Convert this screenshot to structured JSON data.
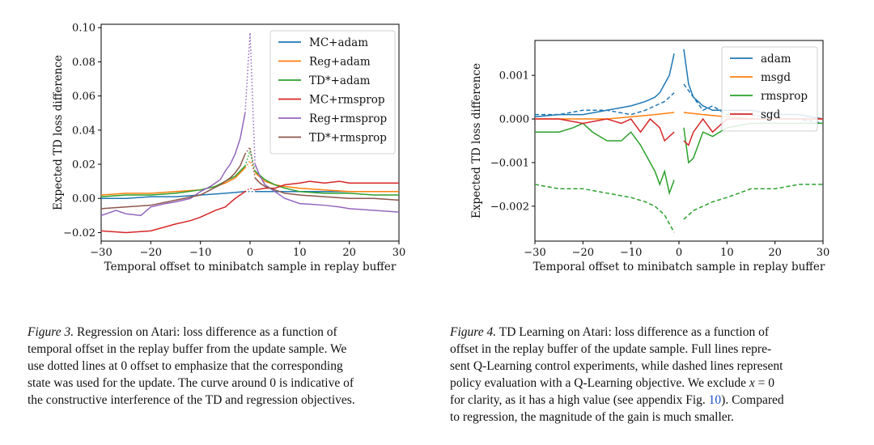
{
  "figure3": {
    "chart_data": {
      "type": "line",
      "ylabel": "Expected TD loss difference",
      "xlabel": "Temporal offset to minibatch sample in replay buffer",
      "xlim": [
        -30,
        30
      ],
      "ylim": [
        -0.025,
        0.102
      ],
      "xticks": [
        -30,
        -20,
        -10,
        0,
        10,
        20,
        30
      ],
      "xtick_labels": [
        "−30",
        "−20",
        "−10",
        "0",
        "10",
        "20",
        "30"
      ],
      "yticks": [
        -0.02,
        0.0,
        0.02,
        0.04,
        0.06,
        0.08,
        0.1
      ],
      "ytick_labels": [
        "−0.02",
        "0.00",
        "0.02",
        "0.04",
        "0.06",
        "0.08",
        "0.10"
      ],
      "legend_position": "top-right",
      "series": [
        {
          "name": "MC+adam",
          "color": "#1f77b4",
          "peak": 0.004,
          "x": [
            -30,
            -25,
            -20,
            -15,
            -10,
            -5,
            -1,
            1,
            5,
            10,
            15,
            20,
            25,
            30
          ],
          "y": [
            0.0,
            0.0,
            0.001,
            0.001,
            0.002,
            0.003,
            0.004,
            0.004,
            0.004,
            0.004,
            0.004,
            0.004,
            0.004,
            0.004
          ]
        },
        {
          "name": "Reg+adam",
          "color": "#ff7f0e",
          "peak": 0.022,
          "x": [
            -30,
            -25,
            -20,
            -15,
            -10,
            -7,
            -5,
            -3,
            -1,
            1,
            3,
            5,
            7,
            10,
            15,
            20,
            25,
            30
          ],
          "y": [
            0.002,
            0.003,
            0.003,
            0.004,
            0.005,
            0.007,
            0.009,
            0.012,
            0.018,
            0.015,
            0.01,
            0.008,
            0.007,
            0.006,
            0.005,
            0.004,
            0.004,
            0.004
          ]
        },
        {
          "name": "TD*+adam",
          "color": "#2ca02c",
          "peak": 0.028,
          "x": [
            -30,
            -25,
            -20,
            -15,
            -10,
            -7,
            -5,
            -3,
            -1,
            1,
            3,
            5,
            7,
            10,
            15,
            20,
            25,
            30
          ],
          "y": [
            0.001,
            0.002,
            0.002,
            0.003,
            0.005,
            0.007,
            0.01,
            0.013,
            0.019,
            0.016,
            0.011,
            0.008,
            0.006,
            0.004,
            0.003,
            0.003,
            0.002,
            0.002
          ]
        },
        {
          "name": "MC+rmsprop",
          "color": "#d62728",
          "peak": 0.006,
          "x": [
            -30,
            -25,
            -20,
            -15,
            -12,
            -10,
            -7,
            -5,
            -3,
            -1,
            1,
            3,
            5,
            7,
            10,
            12,
            15,
            18,
            20,
            25,
            30
          ],
          "y": [
            -0.019,
            -0.02,
            -0.019,
            -0.015,
            -0.013,
            -0.011,
            -0.007,
            -0.005,
            0.0,
            0.004,
            0.005,
            0.006,
            0.006,
            0.008,
            0.009,
            0.01,
            0.009,
            0.01,
            0.009,
            0.009,
            0.009
          ]
        },
        {
          "name": "Reg+rmsprop",
          "color": "#9467bd",
          "peak": 0.097,
          "x": [
            -30,
            -27,
            -25,
            -22,
            -20,
            -17,
            -15,
            -12,
            -10,
            -8,
            -6,
            -5,
            -4,
            -3,
            -2,
            -1,
            1,
            2,
            3,
            5,
            7,
            10,
            15,
            18,
            20,
            25,
            30
          ],
          "y": [
            -0.01,
            -0.007,
            -0.009,
            -0.01,
            -0.005,
            -0.003,
            -0.002,
            0.0,
            0.004,
            0.007,
            0.011,
            0.016,
            0.02,
            0.026,
            0.035,
            0.05,
            0.02,
            0.013,
            0.008,
            0.004,
            0.0,
            -0.003,
            -0.004,
            -0.005,
            -0.006,
            -0.007,
            -0.008
          ]
        },
        {
          "name": "TD*+rmsprop",
          "color": "#8c564b",
          "peak": 0.03,
          "x": [
            -30,
            -25,
            -20,
            -15,
            -10,
            -8,
            -6,
            -4,
            -3,
            -2,
            -1,
            1,
            2,
            3,
            5,
            7,
            10,
            15,
            20,
            25,
            30
          ],
          "y": [
            -0.006,
            -0.005,
            -0.004,
            -0.001,
            0.002,
            0.005,
            0.008,
            0.012,
            0.015,
            0.019,
            0.026,
            0.012,
            0.009,
            0.007,
            0.005,
            0.003,
            0.002,
            0.001,
            0.0,
            0.0,
            -0.001
          ]
        }
      ]
    }
  },
  "figure4": {
    "chart_data": {
      "type": "line",
      "ylabel": "Expected TD loss difference",
      "xlabel": "Temporal offset to minibatch sample in replay buffer",
      "xlim": [
        -30,
        30
      ],
      "ylim": [
        -0.0028,
        0.0018
      ],
      "xticks": [
        -30,
        -20,
        -10,
        0,
        10,
        20,
        30
      ],
      "xtick_labels": [
        "−30",
        "−20",
        "−10",
        "0",
        "10",
        "20",
        "30"
      ],
      "yticks": [
        -0.002,
        -0.001,
        0.0,
        0.001
      ],
      "ytick_labels": [
        "−0.002",
        "−0.001",
        "0.000",
        "0.001"
      ],
      "legend_position": "top-right",
      "legend": [
        {
          "name": "adam",
          "color": "#1f77b4"
        },
        {
          "name": "msgd",
          "color": "#ff7f0e"
        },
        {
          "name": "rmsprop",
          "color": "#2ca02c"
        },
        {
          "name": "sgd",
          "color": "#d62728"
        }
      ],
      "series": [
        {
          "name": "adam",
          "style": "solid",
          "color": "#1f77b4",
          "x": [
            -30,
            -25,
            -20,
            -15,
            -10,
            -7,
            -5,
            -4,
            -3,
            -2,
            -1,
            1,
            2,
            3,
            4,
            5,
            7,
            10,
            15,
            20,
            25,
            30
          ],
          "y": [
            5e-05,
            0.0001,
            0.0001,
            0.0002,
            0.0003,
            0.0004,
            0.0005,
            0.0006,
            0.0008,
            0.001,
            0.0015,
            0.0016,
            0.0008,
            0.0005,
            0.0004,
            0.0003,
            0.0002,
            0.0002,
            0.0002,
            0.0001,
            0.0001,
            0.0
          ]
        },
        {
          "name": "adam",
          "style": "dashed",
          "color": "#1f77b4",
          "x": [
            -30,
            -25,
            -20,
            -15,
            -10,
            -7,
            -5,
            -3,
            -1,
            1,
            3,
            5,
            7,
            10,
            15,
            20,
            25,
            30
          ],
          "y": [
            0.0001,
            0.0001,
            0.0002,
            0.0002,
            0.0001,
            0.0002,
            0.0003,
            0.0004,
            0.0006,
            0.0008,
            0.0005,
            0.0002,
            0.0003,
            0.0001,
            0.0001,
            0.0,
            0.0,
            -0.0001
          ]
        },
        {
          "name": "msgd",
          "style": "solid",
          "color": "#ff7f0e",
          "x": [
            -30,
            -25,
            -20,
            -15,
            -10,
            -5,
            -1,
            1,
            5,
            10,
            15,
            20,
            25,
            30
          ],
          "y": [
            0.0,
            0.0,
            0.0,
            0.0,
            5e-05,
            0.0001,
            0.00015,
            0.00015,
            0.0001,
            5e-05,
            0.0,
            0.0,
            0.0,
            0.0
          ]
        },
        {
          "name": "rmsprop",
          "style": "solid",
          "color": "#2ca02c",
          "x": [
            -30,
            -25,
            -22,
            -20,
            -18,
            -15,
            -12,
            -10,
            -8,
            -6,
            -5,
            -4,
            -3,
            -2,
            -1,
            1,
            2,
            3,
            4,
            5,
            7,
            10,
            15,
            20,
            25,
            30
          ],
          "y": [
            -0.0003,
            -0.0003,
            -0.0002,
            -0.0001,
            -0.0003,
            -0.0005,
            -0.0005,
            -0.0003,
            -0.0006,
            -0.001,
            -0.0012,
            -0.0015,
            -0.0012,
            -0.0017,
            -0.0014,
            -0.0002,
            -0.001,
            -0.0009,
            -0.0006,
            -0.0003,
            -0.0004,
            -0.0002,
            -0.0001,
            -0.0001,
            -0.0001,
            -0.0001
          ]
        },
        {
          "name": "rmsprop",
          "style": "dashed",
          "color": "#2ca02c",
          "x": [
            -30,
            -25,
            -20,
            -15,
            -10,
            -7,
            -5,
            -3,
            -1,
            1,
            3,
            5,
            7,
            10,
            15,
            20,
            25,
            30
          ],
          "y": [
            -0.0015,
            -0.0016,
            -0.0016,
            -0.0017,
            -0.0018,
            -0.0019,
            -0.002,
            -0.0022,
            -0.0026,
            -0.0023,
            -0.0021,
            -0.002,
            -0.0019,
            -0.0018,
            -0.0016,
            -0.0016,
            -0.0015,
            -0.0015
          ]
        },
        {
          "name": "sgd",
          "style": "solid",
          "color": "#d62728",
          "x": [
            -30,
            -25,
            -20,
            -15,
            -12,
            -10,
            -8,
            -6,
            -4,
            -3,
            -2,
            -1,
            1,
            2,
            3,
            5,
            7,
            10,
            15,
            20,
            25,
            30
          ],
          "y": [
            0.0,
            0.0,
            -0.0001,
            0.0,
            -0.0001,
            0.0,
            -0.0003,
            0.0,
            -0.0002,
            -0.0005,
            -0.0004,
            -0.0003,
            -0.0005,
            -0.0006,
            -0.0003,
            0.0,
            -0.0003,
            0.0,
            0.0,
            0.0,
            0.0,
            0.0
          ]
        }
      ]
    }
  },
  "captions": {
    "fig3_label": "Figure 3.",
    "fig3_line1": "Regression on Atari: loss difference as a function of",
    "fig3_line2": "temporal offset in the replay buffer from the update sample. We",
    "fig3_line3": "use dotted lines at 0 offset to emphasize that the corresponding",
    "fig3_line4": "state was used for the update. The curve around 0 is indicative of",
    "fig3_line5": "the constructive interference of the TD and regression objectives.",
    "fig4_label": "Figure 4.",
    "fig4_line1": "TD Learning on Atari: loss difference as a function of",
    "fig4_line2": "offset in the replay buffer of the update sample. Full lines repre-",
    "fig4_line3": "sent Q-Learning control experiments, while dashed lines represent",
    "fig4_line4": "policy evaluation with a Q-Learning objective. We exclude",
    "fig4_math_x": "x",
    "fig4_math_eq": "= 0",
    "fig4_line5a": "for clarity, as it has a high value (see appendix Fig.",
    "fig4_ref": "10",
    "fig4_line5b": "). Compared",
    "fig4_line6": "to regression, the magnitude of the gain is much smaller."
  }
}
